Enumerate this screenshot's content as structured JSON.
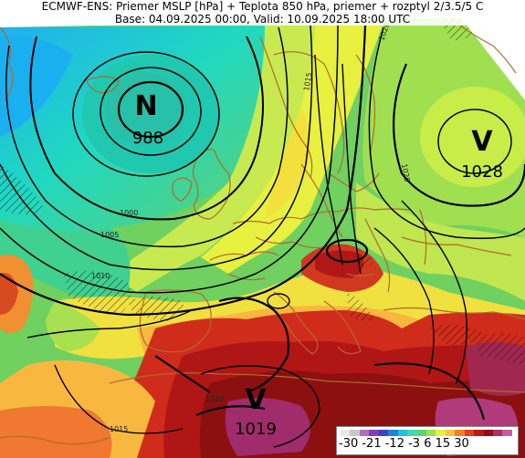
{
  "title_line1": "ECMWF-ENS: Priemer MSLP [hPa] + Teplota 850 hPa, priemer + rozptyl 2/3.5/5 C",
  "title_line2": "Base: 04.09.2025 00:00, Valid: 10.09.2025 18:00 UTC",
  "pressure_centers": [
    {
      "type": "N",
      "value": "988"
    },
    {
      "type": "V",
      "value": "1028"
    },
    {
      "type": "V",
      "value": "1019"
    }
  ],
  "isobar_labels": [
    "1000",
    "1005",
    "1010",
    "1015",
    "1020",
    "1025",
    "1015",
    "1010"
  ],
  "legend": {
    "ticks": "-30 -21 -12 -3  6  15 30",
    "colors": [
      "#e8e8e8",
      "#c8c8c8",
      "#b070c0",
      "#8040b0",
      "#4040c0",
      "#2080e0",
      "#20c0e0",
      "#40d8b0",
      "#60d070",
      "#a0e050",
      "#e8f040",
      "#f8c040",
      "#f08030",
      "#e04020",
      "#c01818",
      "#901010",
      "#b03060",
      "#c060a0"
    ]
  },
  "colors": {
    "cold": "#20c0f0",
    "warm": "#c01818",
    "land_border": "#b06a2a"
  }
}
